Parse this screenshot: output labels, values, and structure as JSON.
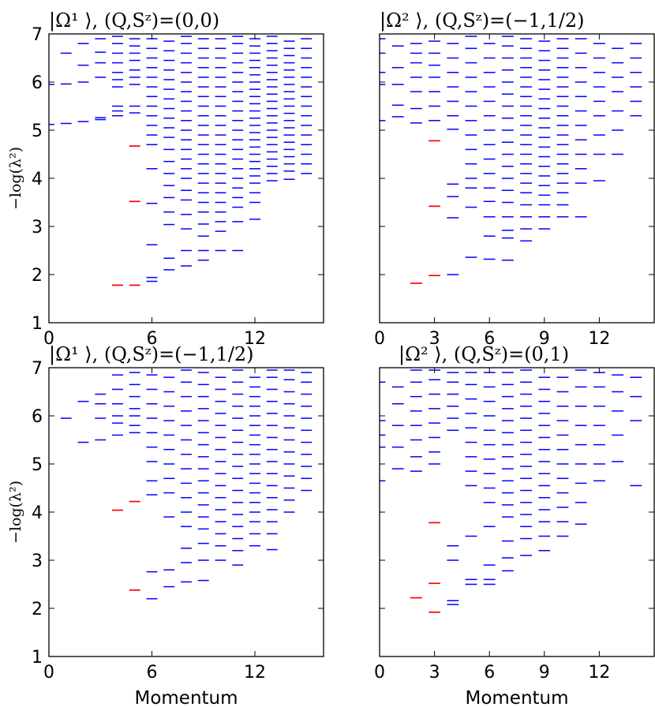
{
  "colors": {
    "level": "#0000ff",
    "highlight": "#ff0000",
    "axis": "#000000"
  },
  "chart_data": [
    {
      "type": "scatter",
      "marker": "horizontal-dash",
      "title": "|Ω¹ ⟩, (Q,Sᶻ)=(0,0)",
      "xlabel": "",
      "ylabel": "−log(λ²)",
      "xlim": [
        0,
        16
      ],
      "ylim": [
        1,
        7
      ],
      "xticks": [
        "0",
        "6",
        "12"
      ],
      "yticks": [
        "1",
        "2",
        "3",
        "4",
        "5",
        "6",
        "7"
      ],
      "highlighted_levels": [
        {
          "x": 4,
          "y": 1.78
        },
        {
          "x": 5,
          "y": 1.78
        },
        {
          "x": 5,
          "y": 3.52
        },
        {
          "x": 5,
          "y": 4.67
        }
      ],
      "levels": [
        [
          0,
          [
            5.12,
            5.95
          ]
        ],
        [
          1,
          [
            5.14,
            5.96,
            6.6
          ]
        ],
        [
          2,
          [
            5.18,
            6.0,
            6.35,
            6.8
          ]
        ],
        [
          3,
          [
            5.22,
            5.26,
            6.1,
            6.4,
            6.62,
            6.9
          ]
        ],
        [
          4,
          [
            5.3,
            5.4,
            5.5,
            5.9,
            6.05,
            6.2,
            6.4,
            6.6,
            6.8,
            6.95
          ]
        ],
        [
          5,
          [
            5.36,
            5.5,
            5.95,
            6.1,
            6.25,
            6.45,
            6.6,
            6.75,
            6.9
          ]
        ],
        [
          6,
          [
            1.86,
            1.94,
            2.62,
            3.48,
            4.2,
            4.7,
            4.9,
            5.1,
            5.3,
            5.5,
            5.7,
            5.9,
            6.1,
            6.3,
            6.5,
            6.7,
            6.9
          ]
        ],
        [
          7,
          [
            2.1,
            2.34,
            3.04,
            3.3,
            3.6,
            3.85,
            4.1,
            4.35,
            4.6,
            4.85,
            5.05,
            5.25,
            5.45,
            5.65,
            5.85,
            6.05,
            6.25,
            6.45,
            6.65,
            6.85
          ]
        ],
        [
          8,
          [
            2.18,
            2.5,
            2.95,
            3.25,
            3.55,
            3.75,
            4.0,
            4.2,
            4.4,
            4.6,
            4.8,
            5.0,
            5.2,
            5.4,
            5.6,
            5.8,
            6.0,
            6.2,
            6.4,
            6.6,
            6.8,
            6.95
          ]
        ],
        [
          9,
          [
            2.3,
            2.5,
            2.8,
            3.05,
            3.3,
            3.5,
            3.7,
            3.9,
            4.1,
            4.3,
            4.5,
            4.7,
            4.9,
            5.1,
            5.3,
            5.5,
            5.7,
            5.9,
            6.1,
            6.3,
            6.5,
            6.7,
            6.9
          ]
        ],
        [
          10,
          [
            2.5,
            2.9,
            3.1,
            3.3,
            3.5,
            3.7,
            3.9,
            4.1,
            4.3,
            4.5,
            4.7,
            4.9,
            5.1,
            5.3,
            5.5,
            5.7,
            5.9,
            6.1,
            6.3,
            6.5,
            6.7,
            6.9
          ]
        ],
        [
          11,
          [
            2.5,
            3.1,
            3.4,
            3.6,
            3.8,
            4.0,
            4.2,
            4.4,
            4.6,
            4.8,
            5.0,
            5.2,
            5.4,
            5.6,
            5.8,
            6.0,
            6.2,
            6.4,
            6.6,
            6.8,
            6.95
          ]
        ],
        [
          12,
          [
            3.15,
            3.5,
            3.7,
            3.9,
            4.05,
            4.2,
            4.35,
            4.5,
            4.65,
            4.8,
            4.95,
            5.1,
            5.25,
            5.4,
            5.55,
            5.7,
            5.85,
            6.0,
            6.15,
            6.3,
            6.45,
            6.6,
            6.75,
            6.9
          ]
        ],
        [
          13,
          [
            3.95,
            4.1,
            4.25,
            4.4,
            4.55,
            4.7,
            4.85,
            5.0,
            5.15,
            5.3,
            5.45,
            5.6,
            5.75,
            5.9,
            6.05,
            6.2,
            6.35,
            6.5,
            6.65,
            6.8,
            6.95
          ]
        ],
        [
          14,
          [
            3.98,
            4.15,
            4.3,
            4.45,
            4.6,
            4.75,
            4.9,
            5.05,
            5.2,
            5.35,
            5.5,
            5.65,
            5.8,
            5.95,
            6.1,
            6.25,
            6.4,
            6.55,
            6.7,
            6.85
          ]
        ],
        [
          15,
          [
            4.1,
            4.3,
            4.5,
            4.7,
            4.9,
            5.1,
            5.3,
            5.5,
            5.7,
            5.9,
            6.1,
            6.3,
            6.5,
            6.7,
            6.9
          ]
        ]
      ]
    },
    {
      "type": "scatter",
      "marker": "horizontal-dash",
      "title": "|Ω² ⟩, (Q,Sᶻ)=(−1,1/2)",
      "xlabel": "",
      "ylabel": "",
      "xlim": [
        0,
        15
      ],
      "ylim": [
        1,
        7
      ],
      "xticks": [
        "0",
        "3",
        "6",
        "9",
        "12"
      ],
      "yticks": [],
      "highlighted_levels": [
        {
          "x": 2,
          "y": 1.82
        },
        {
          "x": 3,
          "y": 1.98
        },
        {
          "x": 3,
          "y": 3.42
        },
        {
          "x": 3,
          "y": 4.78
        }
      ],
      "levels": [
        [
          0,
          [
            5.2,
            5.95,
            6.2,
            6.6,
            6.9
          ]
        ],
        [
          1,
          [
            5.28,
            5.52,
            5.95,
            6.3,
            6.75
          ]
        ],
        [
          2,
          [
            5.15,
            5.45,
            5.8,
            6.1,
            6.4,
            6.6,
            6.8
          ]
        ],
        [
          3,
          [
            5.2,
            5.5,
            5.8,
            6.1,
            6.35,
            6.6,
            6.85
          ]
        ],
        [
          4,
          [
            2.0,
            3.18,
            3.62,
            3.88,
            5.02,
            5.3,
            5.6,
            5.9,
            6.2,
            6.5,
            6.8
          ]
        ],
        [
          5,
          [
            2.36,
            3.4,
            3.8,
            4.0,
            4.3,
            4.6,
            4.9,
            5.2,
            5.5,
            5.8,
            6.1,
            6.4,
            6.7,
            6.95
          ]
        ],
        [
          6,
          [
            2.32,
            2.8,
            3.2,
            3.52,
            3.8,
            4.1,
            4.4,
            4.7,
            5.0,
            5.3,
            5.6,
            5.9,
            6.2,
            6.5,
            6.8
          ]
        ],
        [
          7,
          [
            2.3,
            2.76,
            2.92,
            3.2,
            3.5,
            3.75,
            4.0,
            4.25,
            4.5,
            4.75,
            5.0,
            5.25,
            5.5,
            5.75,
            6.0,
            6.25,
            6.5,
            6.75,
            6.95
          ]
        ],
        [
          8,
          [
            2.7,
            2.95,
            3.2,
            3.45,
            3.7,
            3.9,
            4.1,
            4.3,
            4.5,
            4.7,
            4.9,
            5.1,
            5.3,
            5.5,
            5.7,
            5.9,
            6.1,
            6.3,
            6.5,
            6.7,
            6.9
          ]
        ],
        [
          9,
          [
            2.95,
            3.2,
            3.45,
            3.65,
            3.85,
            4.05,
            4.25,
            4.45,
            4.65,
            4.85,
            5.05,
            5.25,
            5.45,
            5.65,
            5.85,
            6.05,
            6.25,
            6.45,
            6.65,
            6.85
          ]
        ],
        [
          10,
          [
            3.2,
            3.45,
            3.7,
            3.9,
            4.1,
            4.3,
            4.5,
            4.7,
            4.9,
            5.1,
            5.3,
            5.5,
            5.7,
            5.9,
            6.1,
            6.3,
            6.5,
            6.7,
            6.9
          ]
        ],
        [
          11,
          [
            3.2,
            3.9,
            4.2,
            4.5,
            4.8,
            5.1,
            5.4,
            5.7,
            6.0,
            6.3,
            6.6,
            6.9
          ]
        ],
        [
          12,
          [
            3.95,
            4.5,
            4.9,
            5.3,
            5.6,
            5.9,
            6.2,
            6.5,
            6.8
          ]
        ],
        [
          13,
          [
            4.5,
            5.0,
            5.4,
            5.8,
            6.1,
            6.4,
            6.7
          ]
        ],
        [
          14,
          [
            5.3,
            5.6,
            5.9,
            6.2,
            6.5,
            6.8
          ]
        ]
      ]
    },
    {
      "type": "scatter",
      "marker": "horizontal-dash",
      "title": "|Ω¹ ⟩, (Q,Sᶻ)=(−1,1/2)",
      "xlabel": "Momentum",
      "ylabel": "−log(λ²)",
      "xlim": [
        0,
        16
      ],
      "ylim": [
        1,
        7
      ],
      "xticks": [
        "0",
        "6",
        "12"
      ],
      "yticks": [
        "1",
        "2",
        "3",
        "4",
        "5",
        "6",
        "7"
      ],
      "highlighted_levels": [
        {
          "x": 4,
          "y": 4.04
        },
        {
          "x": 5,
          "y": 4.22
        },
        {
          "x": 5,
          "y": 2.38
        }
      ],
      "levels": [
        [
          1,
          [
            5.95
          ]
        ],
        [
          2,
          [
            5.45,
            6.3
          ]
        ],
        [
          3,
          [
            5.5,
            5.95,
            6.25,
            6.45
          ]
        ],
        [
          4,
          [
            5.6,
            5.85,
            6.0,
            6.25,
            6.55,
            6.85
          ]
        ],
        [
          5,
          [
            5.65,
            5.8,
            6.0,
            6.15,
            6.4,
            6.65,
            6.9
          ]
        ],
        [
          6,
          [
            2.2,
            2.76,
            4.36,
            4.65,
            5.05,
            5.35,
            5.65,
            5.95,
            6.25,
            6.55,
            6.85
          ]
        ],
        [
          7,
          [
            2.45,
            2.8,
            3.9,
            4.4,
            4.7,
            5.0,
            5.3,
            5.6,
            5.9,
            6.2,
            6.5,
            6.8
          ]
        ],
        [
          8,
          [
            2.55,
            2.95,
            3.25,
            3.7,
            4.0,
            4.3,
            4.6,
            4.9,
            5.2,
            5.5,
            5.8,
            6.1,
            6.4,
            6.7,
            6.95
          ]
        ],
        [
          9,
          [
            2.58,
            3.0,
            3.35,
            3.65,
            3.9,
            4.15,
            4.4,
            4.65,
            4.9,
            5.15,
            5.4,
            5.65,
            5.9,
            6.15,
            6.4,
            6.65,
            6.9
          ]
        ],
        [
          10,
          [
            3.0,
            3.3,
            3.55,
            3.8,
            4.05,
            4.3,
            4.55,
            4.8,
            5.05,
            5.3,
            5.55,
            5.8,
            6.05,
            6.3,
            6.55,
            6.8
          ]
        ],
        [
          11,
          [
            2.9,
            3.2,
            3.45,
            3.7,
            3.95,
            4.2,
            4.45,
            4.7,
            4.95,
            5.2,
            5.45,
            5.7,
            5.95,
            6.2,
            6.45,
            6.7,
            6.95
          ]
        ],
        [
          12,
          [
            3.3,
            3.55,
            3.8,
            4.0,
            4.2,
            4.4,
            4.6,
            4.8,
            5.0,
            5.2,
            5.4,
            5.6,
            5.8,
            6.0,
            6.2,
            6.4,
            6.6,
            6.8
          ]
        ],
        [
          13,
          [
            3.22,
            3.55,
            3.8,
            4.05,
            4.3,
            4.55,
            4.8,
            5.05,
            5.3,
            5.55,
            5.8,
            6.05,
            6.3,
            6.55,
            6.8,
            6.95
          ]
        ],
        [
          14,
          [
            4.0,
            4.25,
            4.5,
            4.75,
            5.0,
            5.25,
            5.5,
            5.75,
            6.0,
            6.25,
            6.5,
            6.75,
            6.95
          ]
        ],
        [
          15,
          [
            4.45,
            4.7,
            4.95,
            5.2,
            5.45,
            5.7,
            5.95,
            6.2,
            6.45,
            6.7,
            6.9
          ]
        ]
      ]
    },
    {
      "type": "scatter",
      "marker": "horizontal-dash",
      "title": "|Ω² ⟩, (Q,Sᶻ)=(0,1)",
      "xlabel": "Momentum",
      "ylabel": "",
      "xlim": [
        0,
        15
      ],
      "ylim": [
        1,
        7
      ],
      "xticks": [
        "0",
        "3",
        "6",
        "9",
        "12"
      ],
      "yticks": [],
      "highlighted_levels": [
        {
          "x": 2,
          "y": 2.22
        },
        {
          "x": 3,
          "y": 1.92
        },
        {
          "x": 3,
          "y": 2.52
        },
        {
          "x": 3,
          "y": 3.78
        }
      ],
      "levels": [
        [
          0,
          [
            4.65,
            5.35,
            5.6,
            5.9,
            6.7
          ]
        ],
        [
          1,
          [
            4.9,
            5.35,
            5.8,
            6.25,
            6.6
          ]
        ],
        [
          2,
          [
            4.85,
            5.15,
            5.5,
            5.8,
            6.1,
            6.4,
            6.7,
            6.95
          ]
        ],
        [
          3,
          [
            5.0,
            5.25,
            5.55,
            5.85,
            6.15,
            6.45,
            6.75,
            6.95
          ]
        ],
        [
          4,
          [
            2.08,
            2.16,
            3.0,
            3.3,
            5.7,
            5.95,
            6.2,
            6.45,
            6.7,
            6.9
          ]
        ],
        [
          5,
          [
            2.5,
            2.6,
            3.5,
            4.55,
            4.85,
            5.15,
            5.45,
            5.75,
            6.05,
            6.35,
            6.65,
            6.9
          ]
        ],
        [
          6,
          [
            2.5,
            2.6,
            2.9,
            3.7,
            4.2,
            4.5,
            4.8,
            5.1,
            5.4,
            5.7,
            6.0,
            6.3,
            6.6,
            6.9
          ]
        ],
        [
          7,
          [
            2.78,
            3.05,
            3.4,
            3.9,
            4.15,
            4.4,
            4.65,
            4.9,
            5.15,
            5.4,
            5.65,
            5.9,
            6.15,
            6.4,
            6.65,
            6.9
          ]
        ],
        [
          8,
          [
            3.1,
            3.45,
            3.7,
            3.95,
            4.2,
            4.45,
            4.7,
            4.95,
            5.2,
            5.45,
            5.7,
            5.95,
            6.2,
            6.45,
            6.7,
            6.95
          ]
        ],
        [
          9,
          [
            3.2,
            3.5,
            3.8,
            4.05,
            4.3,
            4.55,
            4.8,
            5.05,
            5.3,
            5.55,
            5.8,
            6.05,
            6.3,
            6.55,
            6.8
          ]
        ],
        [
          10,
          [
            3.5,
            3.8,
            4.1,
            4.4,
            4.7,
            5.0,
            5.3,
            5.6,
            5.9,
            6.2,
            6.5,
            6.8
          ]
        ],
        [
          11,
          [
            3.75,
            4.2,
            4.6,
            5.0,
            5.4,
            5.8,
            6.2,
            6.6,
            6.95
          ]
        ],
        [
          12,
          [
            4.65,
            5.0,
            5.4,
            5.8,
            6.2,
            6.6,
            6.9
          ]
        ],
        [
          13,
          [
            5.05,
            5.6,
            6.1,
            6.5,
            6.85
          ]
        ],
        [
          14,
          [
            4.55,
            5.9,
            6.4,
            6.8
          ]
        ]
      ]
    }
  ]
}
